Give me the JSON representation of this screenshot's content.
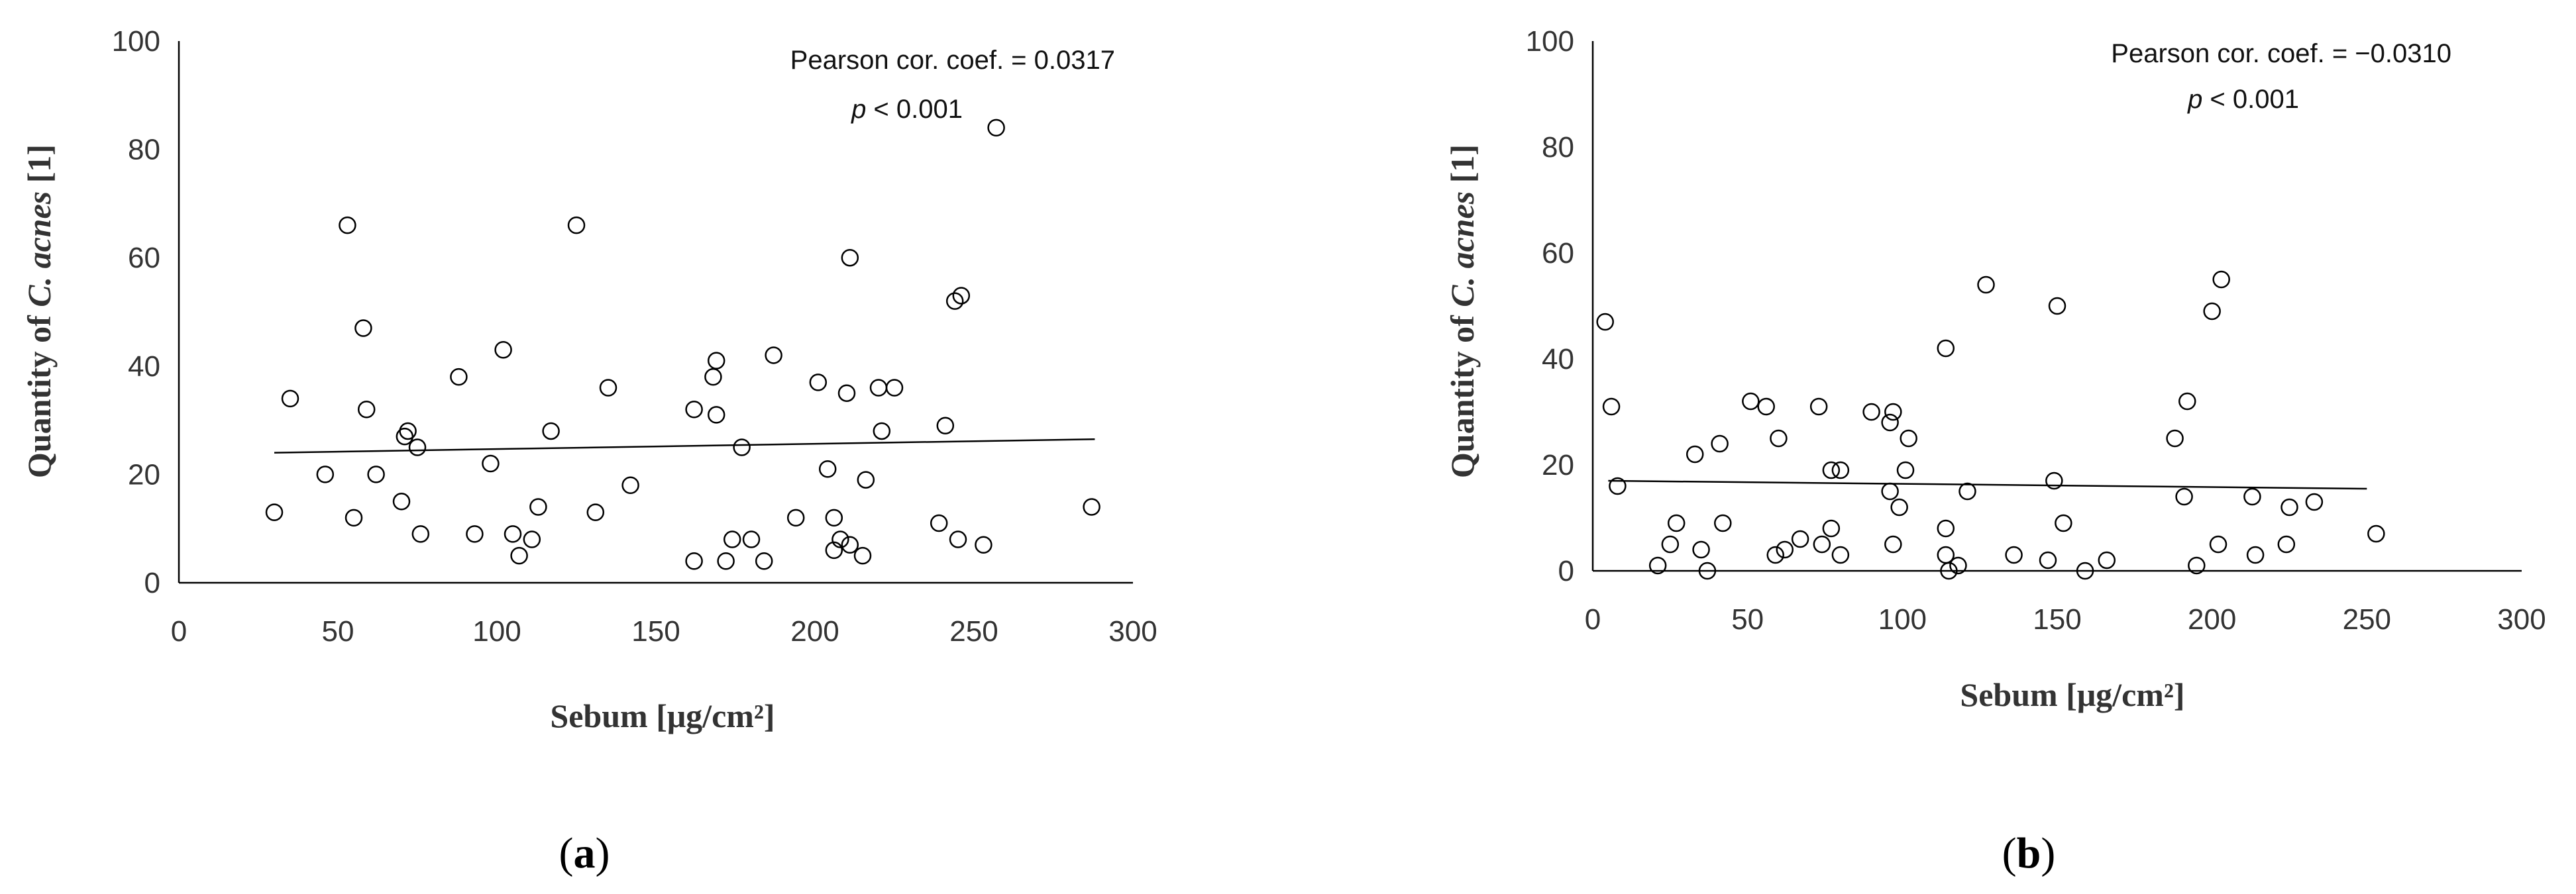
{
  "chart_data": [
    {
      "type": "scatter",
      "panel_label": "a",
      "xlabel": "Sebum [μg/cm²]",
      "ylabel_prefix": "Quantity of ",
      "ylabel_italic": "C. acnes",
      "ylabel_suffix": " [1]",
      "xlim": [
        0,
        300
      ],
      "ylim": [
        0,
        100
      ],
      "xticks": [
        0,
        50,
        100,
        150,
        200,
        250,
        300
      ],
      "yticks": [
        0,
        20,
        40,
        60,
        80,
        100
      ],
      "annotation": {
        "line1": "Pearson cor. coef. = 0.0317",
        "p_symbol": "p",
        "p_rest": " < 0.001"
      },
      "trendline": {
        "x": [
          30,
          288
        ],
        "y": [
          24,
          26.5
        ]
      },
      "points": [
        [
          30,
          13
        ],
        [
          35,
          34
        ],
        [
          46,
          20
        ],
        [
          53,
          66
        ],
        [
          55,
          12
        ],
        [
          58,
          47
        ],
        [
          59,
          32
        ],
        [
          62,
          20
        ],
        [
          70,
          15
        ],
        [
          71,
          27
        ],
        [
          72,
          28
        ],
        [
          75,
          25
        ],
        [
          76,
          9
        ],
        [
          88,
          38
        ],
        [
          93,
          9
        ],
        [
          98,
          22
        ],
        [
          102,
          43
        ],
        [
          105,
          9
        ],
        [
          107,
          5
        ],
        [
          111,
          8
        ],
        [
          113,
          14
        ],
        [
          117,
          28
        ],
        [
          125,
          66
        ],
        [
          131,
          13
        ],
        [
          135,
          36
        ],
        [
          142,
          18
        ],
        [
          162,
          32
        ],
        [
          162,
          4
        ],
        [
          168,
          38
        ],
        [
          169,
          41
        ],
        [
          169,
          31
        ],
        [
          172,
          4
        ],
        [
          174,
          8
        ],
        [
          177,
          25
        ],
        [
          180,
          8
        ],
        [
          184,
          4
        ],
        [
          187,
          42
        ],
        [
          194,
          12
        ],
        [
          201,
          37
        ],
        [
          204,
          21
        ],
        [
          206,
          12
        ],
        [
          206,
          6
        ],
        [
          208,
          8
        ],
        [
          210,
          35
        ],
        [
          211,
          60
        ],
        [
          211,
          7
        ],
        [
          215,
          5
        ],
        [
          216,
          19
        ],
        [
          220,
          36
        ],
        [
          221,
          28
        ],
        [
          225,
          36
        ],
        [
          239,
          11
        ],
        [
          241,
          29
        ],
        [
          244,
          52
        ],
        [
          246,
          53
        ],
        [
          245,
          8
        ],
        [
          253,
          7
        ],
        [
          257,
          84
        ],
        [
          287,
          14
        ]
      ]
    },
    {
      "type": "scatter",
      "panel_label": "b",
      "xlabel": "Sebum [μg/cm²]",
      "ylabel_prefix": "Quantity of ",
      "ylabel_italic": "C. acnes",
      "ylabel_suffix": " [1]",
      "xlim": [
        0,
        300
      ],
      "ylim": [
        0,
        100
      ],
      "xticks": [
        0,
        50,
        100,
        150,
        200,
        250,
        300
      ],
      "yticks": [
        0,
        20,
        40,
        60,
        80,
        100
      ],
      "annotation": {
        "line1": "Pearson cor. coef. = −0.0310",
        "p_symbol": "p",
        "p_rest": " < 0.001"
      },
      "trendline": {
        "x": [
          5,
          250
        ],
        "y": [
          17,
          15.5
        ]
      },
      "points": [
        [
          4,
          47
        ],
        [
          6,
          31
        ],
        [
          8,
          16
        ],
        [
          21,
          1
        ],
        [
          25,
          5
        ],
        [
          27,
          9
        ],
        [
          33,
          22
        ],
        [
          35,
          4
        ],
        [
          37,
          0
        ],
        [
          41,
          24
        ],
        [
          42,
          9
        ],
        [
          59,
          3
        ],
        [
          60,
          25
        ],
        [
          62,
          4
        ],
        [
          51,
          32
        ],
        [
          56,
          31
        ],
        [
          67,
          6
        ],
        [
          74,
          5
        ],
        [
          73,
          31
        ],
        [
          77,
          19
        ],
        [
          77,
          8
        ],
        [
          80,
          19
        ],
        [
          80,
          3
        ],
        [
          90,
          30
        ],
        [
          96,
          15
        ],
        [
          96,
          28
        ],
        [
          97,
          30
        ],
        [
          97,
          5
        ],
        [
          99,
          12
        ],
        [
          101,
          19
        ],
        [
          102,
          25
        ],
        [
          114,
          42
        ],
        [
          114,
          8
        ],
        [
          114,
          3
        ],
        [
          115,
          0
        ],
        [
          118,
          1
        ],
        [
          121,
          15
        ],
        [
          127,
          54
        ],
        [
          136,
          3
        ],
        [
          147,
          2
        ],
        [
          149,
          17
        ],
        [
          150,
          50
        ],
        [
          152,
          9
        ],
        [
          159,
          0
        ],
        [
          166,
          2
        ],
        [
          188,
          25
        ],
        [
          191,
          14
        ],
        [
          192,
          32
        ],
        [
          195,
          1
        ],
        [
          200,
          49
        ],
        [
          202,
          5
        ],
        [
          203,
          55
        ],
        [
          213,
          14
        ],
        [
          214,
          3
        ],
        [
          224,
          5
        ],
        [
          225,
          12
        ],
        [
          233,
          13
        ],
        [
          253,
          7
        ]
      ]
    }
  ]
}
